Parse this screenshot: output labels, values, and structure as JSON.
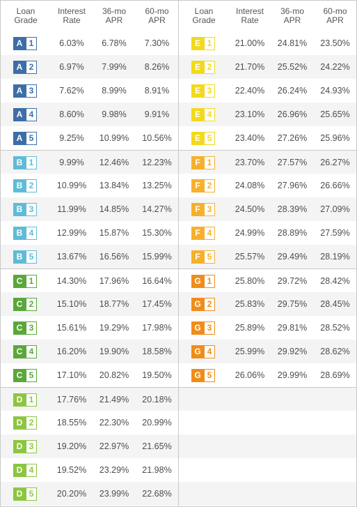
{
  "headers": {
    "grade": [
      "Loan",
      "Grade"
    ],
    "rate": [
      "Interest",
      "Rate"
    ],
    "apr36": [
      "36-mo",
      "APR"
    ],
    "apr60": [
      "60-mo",
      "APR"
    ]
  },
  "grade_colors": {
    "A": "#3d6ea8",
    "B": "#5fbcd6",
    "C": "#5aa83a",
    "D": "#8cc63f",
    "E": "#f2d91e",
    "F": "#f7b02c",
    "G": "#f08d1a"
  },
  "left": [
    {
      "letter": "A",
      "num": "1",
      "rate": "6.03%",
      "apr36": "6.78%",
      "apr60": "7.30%"
    },
    {
      "letter": "A",
      "num": "2",
      "rate": "6.97%",
      "apr36": "7.99%",
      "apr60": "8.26%"
    },
    {
      "letter": "A",
      "num": "3",
      "rate": "7.62%",
      "apr36": "8.99%",
      "apr60": "8.91%"
    },
    {
      "letter": "A",
      "num": "4",
      "rate": "8.60%",
      "apr36": "9.98%",
      "apr60": "9.91%"
    },
    {
      "letter": "A",
      "num": "5",
      "rate": "9.25%",
      "apr36": "10.99%",
      "apr60": "10.56%"
    },
    {
      "letter": "B",
      "num": "1",
      "rate": "9.99%",
      "apr36": "12.46%",
      "apr60": "12.23%"
    },
    {
      "letter": "B",
      "num": "2",
      "rate": "10.99%",
      "apr36": "13.84%",
      "apr60": "13.25%"
    },
    {
      "letter": "B",
      "num": "3",
      "rate": "11.99%",
      "apr36": "14.85%",
      "apr60": "14.27%"
    },
    {
      "letter": "B",
      "num": "4",
      "rate": "12.99%",
      "apr36": "15.87%",
      "apr60": "15.30%"
    },
    {
      "letter": "B",
      "num": "5",
      "rate": "13.67%",
      "apr36": "16.56%",
      "apr60": "15.99%"
    },
    {
      "letter": "C",
      "num": "1",
      "rate": "14.30%",
      "apr36": "17.96%",
      "apr60": "16.64%"
    },
    {
      "letter": "C",
      "num": "2",
      "rate": "15.10%",
      "apr36": "18.77%",
      "apr60": "17.45%"
    },
    {
      "letter": "C",
      "num": "3",
      "rate": "15.61%",
      "apr36": "19.29%",
      "apr60": "17.98%"
    },
    {
      "letter": "C",
      "num": "4",
      "rate": "16.20%",
      "apr36": "19.90%",
      "apr60": "18.58%"
    },
    {
      "letter": "C",
      "num": "5",
      "rate": "17.10%",
      "apr36": "20.82%",
      "apr60": "19.50%"
    },
    {
      "letter": "D",
      "num": "1",
      "rate": "17.76%",
      "apr36": "21.49%",
      "apr60": "20.18%"
    },
    {
      "letter": "D",
      "num": "2",
      "rate": "18.55%",
      "apr36": "22.30%",
      "apr60": "20.99%"
    },
    {
      "letter": "D",
      "num": "3",
      "rate": "19.20%",
      "apr36": "22.97%",
      "apr60": "21.65%"
    },
    {
      "letter": "D",
      "num": "4",
      "rate": "19.52%",
      "apr36": "23.29%",
      "apr60": "21.98%"
    },
    {
      "letter": "D",
      "num": "5",
      "rate": "20.20%",
      "apr36": "23.99%",
      "apr60": "22.68%"
    }
  ],
  "right": [
    {
      "letter": "E",
      "num": "1",
      "rate": "21.00%",
      "apr36": "24.81%",
      "apr60": "23.50%"
    },
    {
      "letter": "E",
      "num": "2",
      "rate": "21.70%",
      "apr36": "25.52%",
      "apr60": "24.22%"
    },
    {
      "letter": "E",
      "num": "3",
      "rate": "22.40%",
      "apr36": "26.24%",
      "apr60": "24.93%"
    },
    {
      "letter": "E",
      "num": "4",
      "rate": "23.10%",
      "apr36": "26.96%",
      "apr60": "25.65%"
    },
    {
      "letter": "E",
      "num": "5",
      "rate": "23.40%",
      "apr36": "27.26%",
      "apr60": "25.96%"
    },
    {
      "letter": "F",
      "num": "1",
      "rate": "23.70%",
      "apr36": "27.57%",
      "apr60": "26.27%"
    },
    {
      "letter": "F",
      "num": "2",
      "rate": "24.08%",
      "apr36": "27.96%",
      "apr60": "26.66%"
    },
    {
      "letter": "F",
      "num": "3",
      "rate": "24.50%",
      "apr36": "28.39%",
      "apr60": "27.09%"
    },
    {
      "letter": "F",
      "num": "4",
      "rate": "24.99%",
      "apr36": "28.89%",
      "apr60": "27.59%"
    },
    {
      "letter": "F",
      "num": "5",
      "rate": "25.57%",
      "apr36": "29.49%",
      "apr60": "28.19%"
    },
    {
      "letter": "G",
      "num": "1",
      "rate": "25.80%",
      "apr36": "29.72%",
      "apr60": "28.42%"
    },
    {
      "letter": "G",
      "num": "2",
      "rate": "25.83%",
      "apr36": "29.75%",
      "apr60": "28.45%"
    },
    {
      "letter": "G",
      "num": "3",
      "rate": "25.89%",
      "apr36": "29.81%",
      "apr60": "28.52%"
    },
    {
      "letter": "G",
      "num": "4",
      "rate": "25.99%",
      "apr36": "29.92%",
      "apr60": "28.62%"
    },
    {
      "letter": "G",
      "num": "5",
      "rate": "26.06%",
      "apr36": "29.99%",
      "apr60": "28.69%"
    }
  ]
}
